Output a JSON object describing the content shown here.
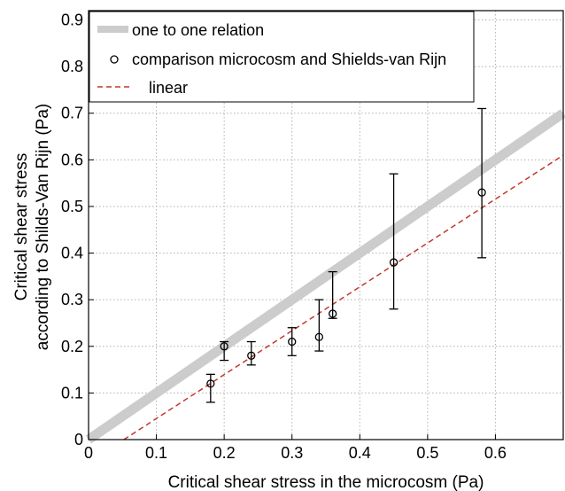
{
  "chart_data": {
    "type": "scatter",
    "xlabel": "Critical shear stress in the microcosm (Pa)",
    "ylabel_lines": [
      "Critical shear stress",
      "according to Shilds-Van Rijn (Pa)"
    ],
    "xlim": [
      0,
      0.7
    ],
    "ylim": [
      0,
      0.92
    ],
    "xticks": [
      0,
      0.1,
      0.2,
      0.3,
      0.4,
      0.5,
      0.6
    ],
    "xtick_labels": [
      "0",
      "0.1",
      "0.2",
      "0.3",
      "0.4",
      "0.5",
      "0.6"
    ],
    "yticks": [
      0,
      0.1,
      0.2,
      0.3,
      0.4,
      0.5,
      0.6,
      0.7,
      0.8,
      0.9
    ],
    "ytick_labels": [
      "0",
      "0.1",
      "0.2",
      "0.3",
      "0.4",
      "0.5",
      "0.6",
      "0.7",
      "0.8",
      "0.9"
    ],
    "grid": true,
    "legend_position": "top-left",
    "series": [
      {
        "name": "one to one relation",
        "kind": "line",
        "color": "#cccccc",
        "x": [
          0,
          0.7
        ],
        "y": [
          0,
          0.7
        ]
      },
      {
        "name": "comparison microcosm and Shields-van Rijn",
        "kind": "scatter-errorbar",
        "color": "#000000",
        "x": [
          0.18,
          0.2,
          0.24,
          0.3,
          0.34,
          0.36,
          0.45,
          0.58
        ],
        "y": [
          0.12,
          0.2,
          0.18,
          0.21,
          0.22,
          0.27,
          0.38,
          0.53
        ],
        "y_low": [
          0.08,
          0.17,
          0.16,
          0.18,
          0.19,
          0.26,
          0.28,
          0.39
        ],
        "y_high": [
          0.14,
          0.21,
          0.21,
          0.24,
          0.3,
          0.36,
          0.57,
          0.71
        ]
      },
      {
        "name": "linear",
        "kind": "dashed-line",
        "color": "#c0392b",
        "x": [
          0.052,
          0.7
        ],
        "y": [
          0,
          0.61
        ]
      }
    ]
  }
}
